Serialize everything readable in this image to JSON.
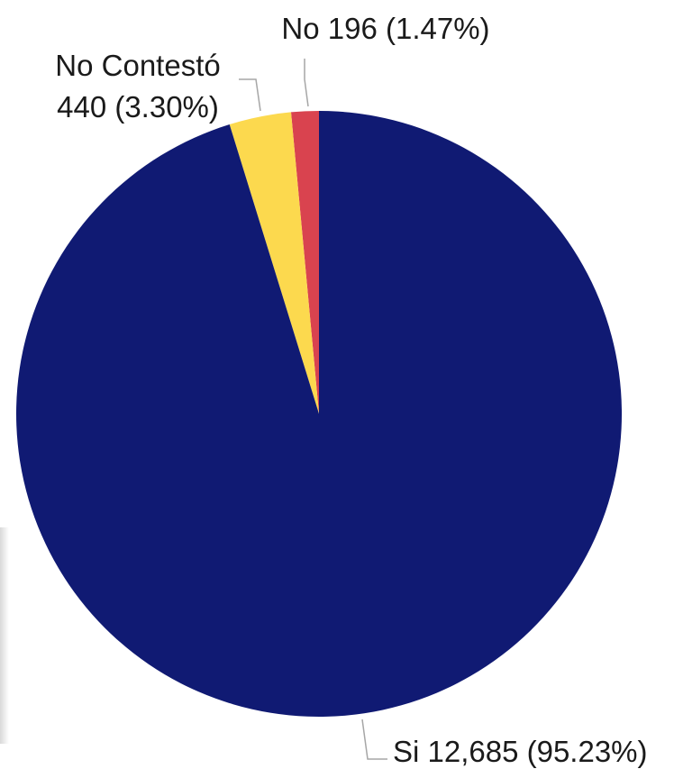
{
  "chart_data": {
    "type": "pie",
    "start_angle": "12 o'clock",
    "direction": "counterclockwise",
    "slices": [
      {
        "name": "No",
        "value": 196,
        "percent": 1.47,
        "color": "#d9434f",
        "label": "No 196 (1.47%)"
      },
      {
        "name": "No Contestó",
        "value": 440,
        "percent": 3.3,
        "color": "#fcd94e",
        "label_lines": [
          "No Contestó",
          "440 (3.30%)"
        ]
      },
      {
        "name": "Si",
        "value": 12685,
        "percent": 95.23,
        "color": "#101a73",
        "label": "Si 12,685 (95.23%)"
      }
    ]
  }
}
